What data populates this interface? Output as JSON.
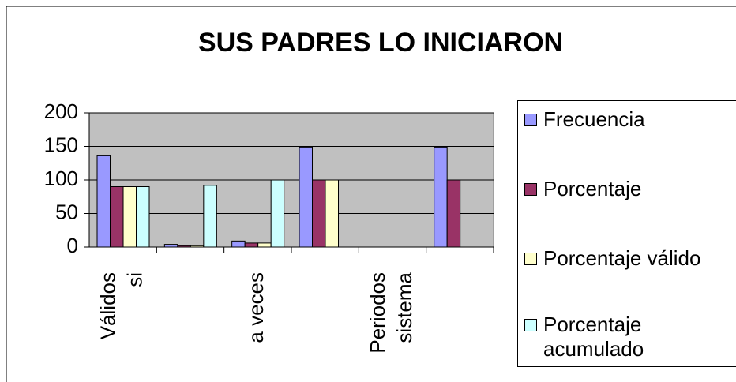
{
  "chart_data": {
    "type": "bar",
    "title": "SUS PADRES LO INICIARON",
    "categories": [
      [
        "Válidos",
        "si"
      ],
      null,
      [
        "a veces"
      ],
      null,
      [
        "Periodos",
        "sistema"
      ],
      null
    ],
    "series": [
      {
        "name": "Frecuencia",
        "color": "#9999ff",
        "values": [
          136,
          4,
          9,
          149,
          null,
          149
        ]
      },
      {
        "name": "Porcentaje",
        "color": "#993366",
        "values": [
          90,
          2,
          6,
          100,
          null,
          100
        ]
      },
      {
        "name": "Porcentaje válido",
        "color": "#ffffcc",
        "values": [
          90,
          2,
          6,
          100,
          null,
          null
        ]
      },
      {
        "name": "Porcentaje acumulado",
        "color": "#ccffff",
        "values": [
          90,
          92,
          100,
          null,
          null,
          null
        ]
      }
    ],
    "ylim": [
      0,
      200
    ],
    "yticks": [
      0,
      50,
      100,
      150,
      200
    ],
    "grid": true,
    "legend": "right"
  }
}
